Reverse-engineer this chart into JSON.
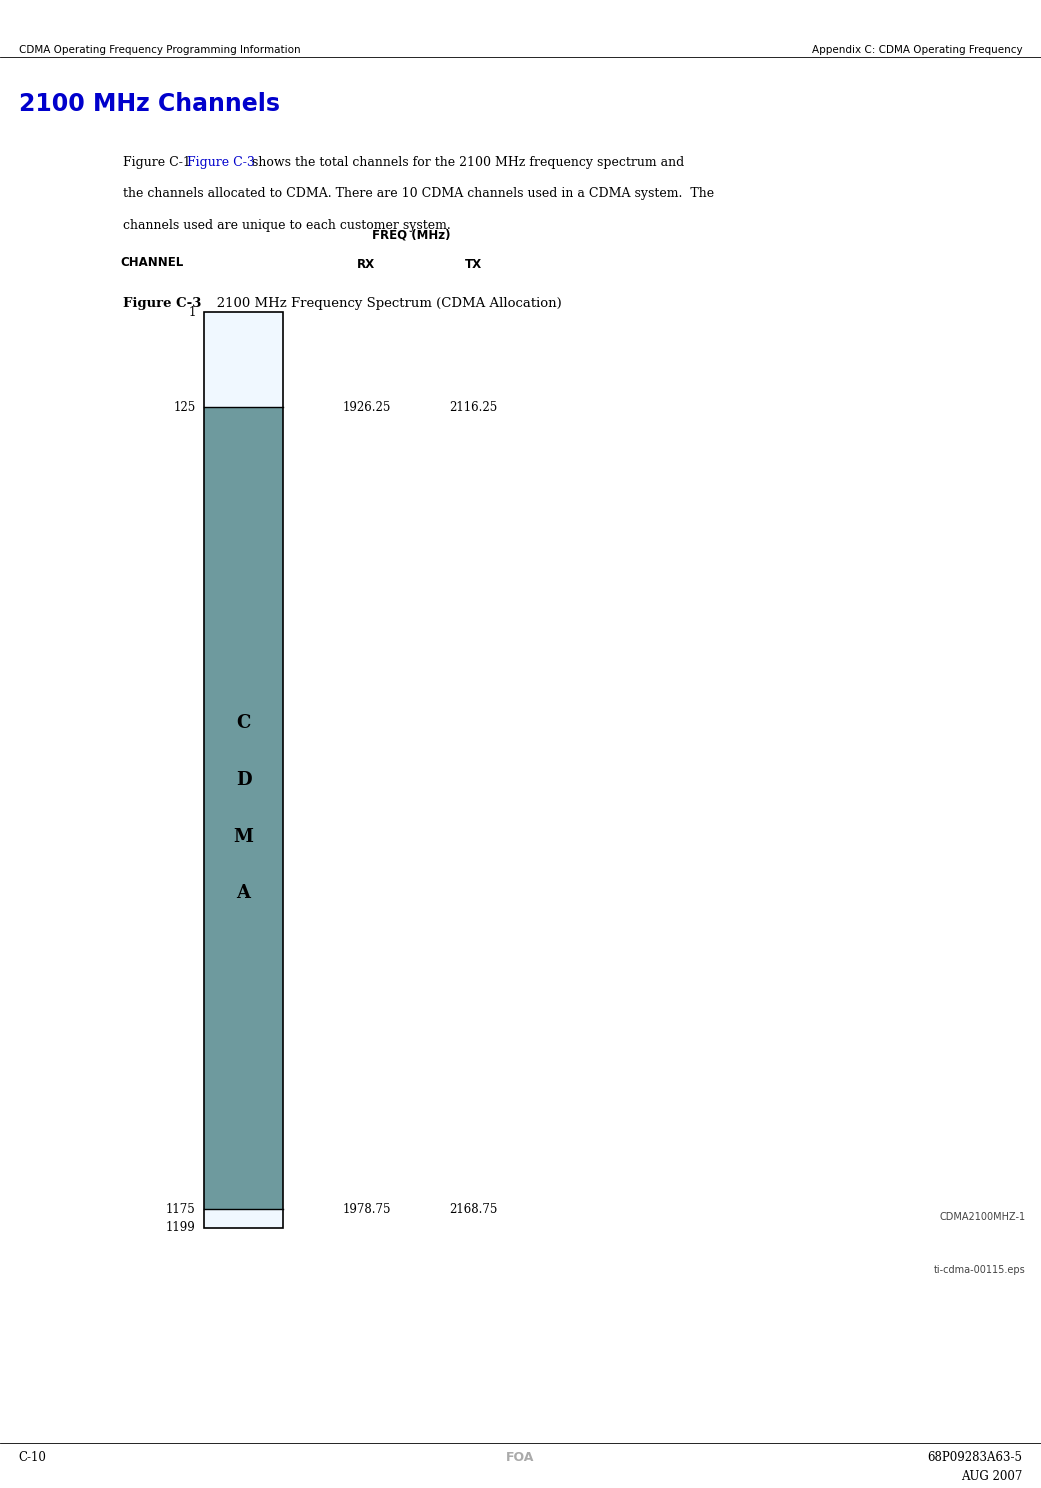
{
  "page_width": 10.41,
  "page_height": 14.88,
  "bg_color": "#ffffff",
  "header_left": "CDMA Operating Frequency Programming Information",
  "header_right": "Appendix C: CDMA Operating Frequency",
  "section_title": "2100 MHz Channels",
  "section_title_color": "#0000cc",
  "body_text_line1": "Figure C-1",
  "body_text_link": "Figure C-3",
  "body_text_rest": " shows the total channels for the 2100 MHz frequency spectrum and",
  "body_text_line2": "the channels allocated to CDMA. There are 10 CDMA channels used in a CDMA system.  The",
  "body_text_line3": "channels used are unique to each customer system.",
  "fig_label_bold": "Figure C-3",
  "fig_label_rest": "   2100 MHz Frequency Spectrum (CDMA Allocation)",
  "freq_label": "FREQ (MHz)",
  "rx_label": "RX",
  "tx_label": "TX",
  "channel_label": "CHANNEL",
  "channel_top": "1",
  "channel_cdma_start": "125",
  "channel_cdma_end": "1175",
  "channel_bottom": "1199",
  "rx_top": "1926.25",
  "tx_top": "2116.25",
  "rx_bottom": "1978.75",
  "tx_bottom": "2168.75",
  "cdma_label_chars": [
    "C",
    "D",
    "M",
    "A"
  ],
  "color_white_segment": "#f0f8ff",
  "color_cdma_segment": "#6e9a9e",
  "color_border": "#000000",
  "figure_id": "CDMA2100MHZ-1",
  "eps_label": "ti-cdma-00115.eps",
  "footer_left": "C-10",
  "footer_center": "FOA",
  "footer_right_line1": "68P09283A63-5",
  "footer_right_line2": "AUG 2007",
  "footer_color": "#aaaaaa"
}
